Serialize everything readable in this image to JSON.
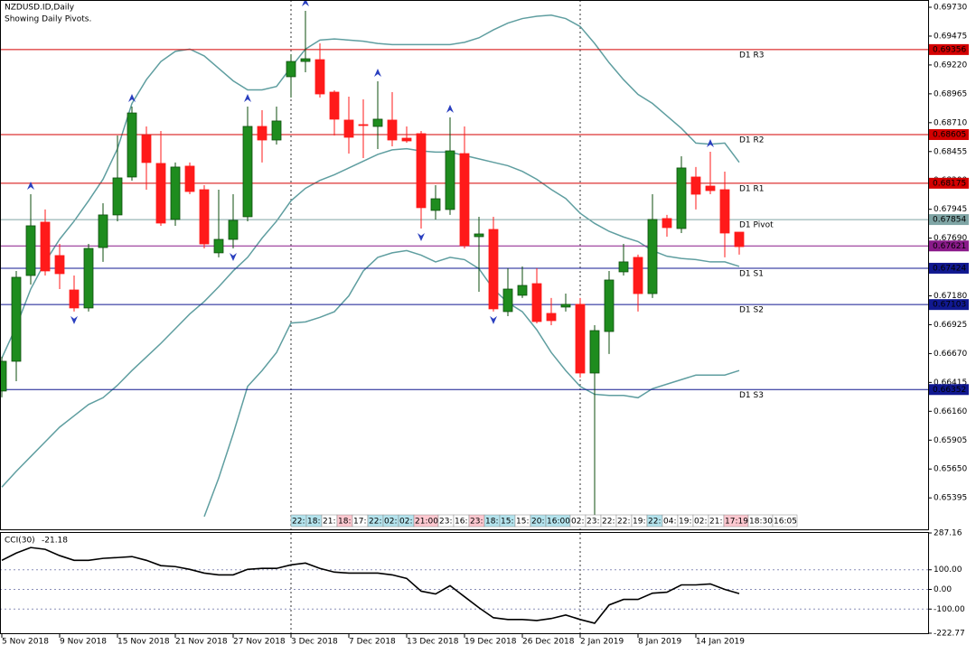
{
  "chart_data": {
    "type": "candlestick",
    "title": "NZDUSD.ID,Daily",
    "subtitle": "Showing Daily Pivots.",
    "categories": [
      "5 Nov 2018",
      null,
      null,
      null,
      "9 Nov 2018",
      null,
      null,
      null,
      "15 Nov 2018",
      null,
      null,
      null,
      "21 Nov 2018",
      null,
      null,
      null,
      "27 Nov 2018",
      null,
      null,
      null,
      "3 Dec 2018",
      null,
      null,
      null,
      "7 Dec 2018",
      null,
      null,
      null,
      "13 Dec 2018",
      null,
      null,
      null,
      "19 Dec 2018",
      null,
      null,
      null,
      "26 Dec 2018",
      null,
      null,
      null,
      "2 Jan 2019",
      null,
      null,
      null,
      "8 Jan 2019",
      null,
      null,
      null,
      "14 Jan 2019",
      null,
      null,
      null
    ],
    "open": [
      0.66339,
      0.66602,
      0.6736,
      0.67831,
      0.67536,
      0.67232,
      0.67073,
      0.67607,
      0.67895,
      0.6823,
      0.68597,
      0.6835,
      0.67855,
      0.68326,
      0.68118,
      0.6756,
      0.67679,
      0.67879,
      0.68677,
      0.68557,
      0.69116,
      0.69251,
      0.69267,
      0.6898,
      0.68733,
      0.68693,
      0.68677,
      0.68733,
      0.68573,
      0.68613,
      0.67935,
      0.67943,
      0.68437,
      0.67703,
      0.67767,
      0.67041,
      0.67185,
      0.67288,
      0.67025,
      0.67081,
      0.67105,
      0.66498,
      0.66865,
      0.67392,
      0.6752,
      0.672,
      0.67863,
      0.67775,
      0.6823,
      0.6815,
      0.68118,
      0.67743
    ],
    "high": [
      0.66642,
      0.674,
      0.68078,
      0.67943,
      0.67639,
      0.6736,
      0.67639,
      0.67998,
      0.68597,
      0.68852,
      0.68677,
      0.68637,
      0.68358,
      0.68358,
      0.68158,
      0.68118,
      0.68078,
      0.68852,
      0.6882,
      0.68852,
      0.69315,
      0.69698,
      0.69411,
      0.68996,
      0.6894,
      0.68916,
      0.69076,
      0.6898,
      0.68677,
      0.68637,
      0.68158,
      0.68757,
      0.68677,
      0.67879,
      0.67879,
      0.67424,
      0.6744,
      0.67424,
      0.67161,
      0.672,
      0.67161,
      0.66921,
      0.674,
      0.67639,
      0.67544,
      0.68078,
      0.67895,
      0.68413,
      0.68318,
      0.68453,
      0.68278,
      0.67743
    ],
    "low": [
      0.66283,
      0.66426,
      0.6728,
      0.6736,
      0.6724,
      0.67041,
      0.67041,
      0.6748,
      0.67839,
      0.68198,
      0.68118,
      0.67799,
      0.67799,
      0.68078,
      0.67599,
      0.6752,
      0.67599,
      0.67839,
      0.68358,
      0.68517,
      0.68932,
      0.69156,
      0.68932,
      0.68597,
      0.68437,
      0.68397,
      0.68477,
      0.68501,
      0.68533,
      0.67775,
      0.67855,
      0.67895,
      0.67599,
      0.67216,
      0.67041,
      0.67001,
      0.67161,
      0.66937,
      0.66921,
      0.67041,
      0.66458,
      0.65245,
      0.66666,
      0.6736,
      0.67041,
      0.67161,
      0.67703,
      0.67735,
      0.67943,
      0.68078,
      0.6752,
      0.67544
    ],
    "close": [
      0.66602,
      0.67344,
      0.67799,
      0.674,
      0.67376,
      0.67073,
      0.67599,
      0.67895,
      0.68222,
      0.68796,
      0.68358,
      0.67823,
      0.68318,
      0.68102,
      0.67639,
      0.67679,
      0.67847,
      0.68677,
      0.68557,
      0.68725,
      0.69251,
      0.69275,
      0.68964,
      0.68741,
      0.68581,
      0.68685,
      0.68741,
      0.68557,
      0.68549,
      0.67959,
      0.68038,
      0.68461,
      0.67623,
      0.67727,
      0.67065,
      0.6724,
      0.67272,
      0.66953,
      0.66961,
      0.67105,
      0.66498,
      0.66873,
      0.6732,
      0.6748,
      0.672,
      0.67855,
      0.67783,
      0.6831,
      0.68078,
      0.6811,
      0.67735,
      0.67615
    ],
    "up_color": "#1e8c1e",
    "down_color": "#ff1a1a",
    "bands": {
      "color": "#5f9ea0",
      "upper": [
        0.6663,
        0.6691,
        0.6724,
        0.6748,
        0.6768,
        0.6784,
        0.6802,
        0.6821,
        0.6848,
        0.6888,
        0.6909,
        0.6925,
        0.6934,
        0.6936,
        0.693,
        0.6919,
        0.6908,
        0.69,
        0.69,
        0.6903,
        0.692,
        0.6936,
        0.6944,
        0.6945,
        0.6944,
        0.6943,
        0.6941,
        0.694,
        0.694,
        0.694,
        0.694,
        0.694,
        0.6942,
        0.6946,
        0.6953,
        0.6959,
        0.6963,
        0.6965,
        0.6966,
        0.6963,
        0.6956,
        0.6941,
        0.6924,
        0.6909,
        0.6896,
        0.6888,
        0.6877,
        0.6866,
        0.6853,
        0.6852,
        0.6853,
        0.6836
      ],
      "middle": [
        0.6549,
        0.6563,
        0.6576,
        0.6589,
        0.6602,
        0.6612,
        0.6622,
        0.6628,
        0.6639,
        0.6652,
        0.6664,
        0.6676,
        0.6689,
        0.6702,
        0.6713,
        0.6726,
        0.674,
        0.6752,
        0.6769,
        0.6784,
        0.6802,
        0.6813,
        0.682,
        0.6825,
        0.6831,
        0.6837,
        0.6843,
        0.6847,
        0.6848,
        0.6846,
        0.6845,
        0.6845,
        0.6842,
        0.6839,
        0.6836,
        0.6833,
        0.6828,
        0.6821,
        0.6812,
        0.6804,
        0.6791,
        0.6782,
        0.6775,
        0.677,
        0.6766,
        0.6758,
        0.6753,
        0.6751,
        0.675,
        0.6748,
        0.6748,
        0.6744
      ],
      "lower": [
        null,
        null,
        null,
        null,
        null,
        null,
        null,
        null,
        null,
        null,
        null,
        null,
        null,
        null,
        0.6523,
        0.6557,
        0.6596,
        0.6638,
        0.6652,
        0.6668,
        0.6694,
        0.6695,
        0.6699,
        0.6704,
        0.6718,
        0.674,
        0.6752,
        0.6756,
        0.6758,
        0.6754,
        0.6748,
        0.6752,
        0.675,
        0.6742,
        0.6724,
        0.6712,
        0.6704,
        0.6688,
        0.6668,
        0.6652,
        0.6638,
        0.6631,
        0.663,
        0.663,
        0.6628,
        0.6636,
        0.664,
        0.6644,
        0.6648,
        0.6648,
        0.6648,
        0.6652
      ]
    },
    "fractals": {
      "color": "#2a3fbf",
      "up": [
        null,
        null,
        0.68078,
        null,
        null,
        null,
        null,
        null,
        null,
        0.68852,
        null,
        null,
        null,
        null,
        null,
        null,
        null,
        0.68852,
        null,
        null,
        null,
        0.69698,
        null,
        null,
        null,
        null,
        0.69076,
        null,
        null,
        null,
        null,
        0.68757,
        null,
        null,
        null,
        null,
        null,
        null,
        null,
        null,
        null,
        null,
        null,
        null,
        null,
        null,
        null,
        null,
        null,
        0.68453,
        null,
        null
      ],
      "down": [
        null,
        null,
        null,
        null,
        null,
        0.67041,
        null,
        null,
        null,
        null,
        null,
        null,
        null,
        null,
        null,
        null,
        0.67599,
        null,
        null,
        null,
        null,
        null,
        null,
        null,
        null,
        null,
        null,
        null,
        null,
        0.67775,
        null,
        null,
        null,
        null,
        0.67041,
        null,
        null,
        null,
        null,
        null,
        null,
        null,
        null,
        null,
        null,
        null,
        null,
        null,
        null,
        null,
        null,
        null
      ]
    },
    "levels": [
      {
        "name": "D1 R3",
        "value": 0.69356,
        "color": "#d40000"
      },
      {
        "name": "D1 R2",
        "value": 0.68605,
        "color": "#d40000"
      },
      {
        "name": "D1 R1",
        "value": 0.68175,
        "color": "#d40000"
      },
      {
        "name": "D1 Pivot",
        "value": 0.67854,
        "color": "#7fa5a5"
      },
      {
        "name": "D1 S1",
        "value": 0.67424,
        "color": "#101890"
      },
      {
        "name": "D1 S2",
        "value": 0.67103,
        "color": "#101890"
      },
      {
        "name": "D1 S3",
        "value": 0.66352,
        "color": "#101890"
      }
    ],
    "last_price": {
      "value": 0.67621,
      "color": "#8a1a8a"
    },
    "ylim": [
      0.65125,
      0.69794
    ],
    "yticks": [
      {
        "value": 0.6973,
        "label": "0.69730"
      },
      0.69475,
      {
        "value": 0.6922,
        "label": "0.69220"
      },
      0.68965,
      {
        "value": 0.6871,
        "label": "0.68710"
      },
      0.68455,
      {
        "value": 0.682,
        "label": "0.68200"
      },
      0.67945,
      {
        "value": 0.6769,
        "label": "0.67690"
      },
      {
        "value": 0.6718,
        "label": "0.67180"
      },
      0.66925,
      {
        "value": 0.6667,
        "label": "0.66670"
      },
      0.66415,
      {
        "value": 0.6616,
        "label": "0.66160"
      },
      0.65905,
      {
        "value": 0.6565,
        "label": "0.65650"
      },
      0.65395
    ],
    "time_labels": [
      {
        "text": "22:",
        "color": "#b4e4ee"
      },
      {
        "text": "18:",
        "color": "#b4e4ee"
      },
      {
        "text": "21:",
        "color": "#ffffff"
      },
      {
        "text": "18:",
        "color": "#ffc8d0"
      },
      {
        "text": "17:",
        "color": "#ffffff"
      },
      {
        "text": "22:",
        "color": "#b4e4ee"
      },
      {
        "text": "02:",
        "color": "#b4e4ee"
      },
      {
        "text": "02:",
        "color": "#b4e4ee"
      },
      {
        "text": "21:00",
        "color": "#ffc8d0"
      },
      {
        "text": "23:",
        "color": "#ffffff"
      },
      {
        "text": "16:",
        "color": "#ffffff"
      },
      {
        "text": "23:",
        "color": "#ffc8d0"
      },
      {
        "text": "18:",
        "color": "#b4e4ee"
      },
      {
        "text": "15:",
        "color": "#b4e4ee"
      },
      {
        "text": "15:",
        "color": "#ffffff"
      },
      {
        "text": "20:",
        "color": "#b4e4ee"
      },
      {
        "text": "16:00",
        "color": "#b4e4ee"
      },
      {
        "text": "02:",
        "color": "#ffffff"
      },
      {
        "text": "23:",
        "color": "#ffffff"
      },
      {
        "text": "22:",
        "color": "#ffffff"
      },
      {
        "text": "22:",
        "color": "#ffffff"
      },
      {
        "text": "19:",
        "color": "#ffffff"
      },
      {
        "text": "22:",
        "color": "#b4e4ee"
      },
      {
        "text": "04:",
        "color": "#ffffff"
      },
      {
        "text": "19:",
        "color": "#ffffff"
      },
      {
        "text": "02:",
        "color": "#ffffff"
      },
      {
        "text": "21:",
        "color": "#ffffff"
      },
      {
        "text": "17:19",
        "color": "#ffc8d0"
      },
      {
        "text": "18:30",
        "color": "#ffffff"
      },
      {
        "text": "16:05",
        "color": "#ffffff"
      }
    ],
    "cci": {
      "name": "CCI(30)",
      "color": "#000000",
      "values": [
        148,
        185,
        213,
        204,
        172,
        148,
        148,
        158,
        162,
        167,
        148,
        121,
        116,
        102,
        83,
        74,
        74,
        102,
        107,
        107,
        125,
        134,
        107,
        88,
        83,
        83,
        83,
        74,
        56,
        -9,
        -23,
        19,
        -37,
        -93,
        -144,
        -153,
        -153,
        -158,
        -148,
        -130,
        -153,
        -172,
        -79,
        -51,
        -51,
        -19,
        -14,
        23,
        23,
        28,
        0,
        -21.18
      ],
      "ylim": [
        -222.77,
        287.16
      ],
      "yticks": [
        287.16,
        {
          "value": 100,
          "label": "100.00"
        },
        {
          "value": 0,
          "label": "0.00"
        },
        {
          "value": -100,
          "label": "-100.00"
        },
        -222.77
      ],
      "levels": [
        100,
        0,
        -100
      ],
      "level_color": "#8a8fb8"
    }
  }
}
